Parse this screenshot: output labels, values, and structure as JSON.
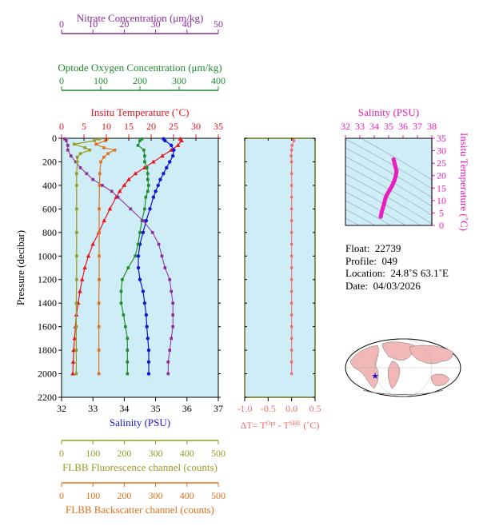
{
  "chart_data": {
    "type": "line",
    "colors": {
      "nitrate": "#8B2A9C",
      "oxygen": "#1E8C2E",
      "temperature": "#E8141C",
      "salinity": "#1414D2",
      "fluorescence": "#9A9A22",
      "backscatter": "#E0701A",
      "panel_bg": "#CFEDF6",
      "dt": "#F06A6A",
      "ts": "#E81EC0"
    },
    "y_axis": {
      "label": "Pressure (decibar)",
      "range": [
        0,
        2200
      ],
      "ticks": [
        "0",
        "200",
        "400",
        "600",
        "800",
        "1000",
        "1200",
        "1400",
        "1600",
        "1800",
        "2000",
        "2200"
      ]
    },
    "axes": {
      "nitrate": {
        "label": "Nitrate Concentration (μm/kg)",
        "range": [
          0,
          50
        ],
        "ticks": [
          "0",
          "10",
          "20",
          "30",
          "40",
          "50"
        ]
      },
      "oxygen": {
        "label": "Optode Oxygen Concentration (μm/kg)",
        "range": [
          0,
          400
        ],
        "ticks": [
          "0",
          "100",
          "200",
          "300",
          "400"
        ]
      },
      "temperature": {
        "label": "Insitu Temperature (˚C)",
        "range": [
          0,
          35
        ],
        "ticks": [
          "0",
          "5",
          "10",
          "15",
          "20",
          "25",
          "30",
          "35"
        ]
      },
      "salinity": {
        "label": "Salinity (PSU)",
        "range": [
          32,
          37
        ],
        "ticks": [
          "32",
          "33",
          "34",
          "35",
          "36",
          "37"
        ]
      },
      "fluorescence": {
        "label": "FLBB Fluorescence channel (counts)",
        "range": [
          0,
          500
        ],
        "ticks": [
          "0",
          "100",
          "200",
          "300",
          "400",
          "500"
        ]
      },
      "backscatter": {
        "label": "FLBB Backscatter channel (counts)",
        "range": [
          0,
          500
        ],
        "ticks": [
          "0",
          "100",
          "200",
          "300",
          "400",
          "500"
        ]
      }
    },
    "series": [
      {
        "name": "temperature",
        "pressure": [
          5,
          20,
          60,
          100,
          150,
          200,
          250,
          300,
          350,
          400,
          450,
          500,
          600,
          700,
          800,
          900,
          1000,
          1100,
          1200,
          1300,
          1400,
          1500,
          1600,
          1700,
          1800,
          1900,
          2000
        ],
        "values": [
          26.5,
          26.8,
          26.0,
          24.5,
          22.5,
          20.5,
          18.5,
          16.5,
          15.0,
          14.0,
          13.0,
          12.2,
          10.8,
          9.5,
          8.3,
          7.0,
          6.0,
          5.2,
          4.6,
          4.1,
          3.7,
          3.3,
          3.1,
          2.9,
          2.7,
          2.6,
          2.5
        ]
      },
      {
        "name": "salinity",
        "pressure": [
          5,
          20,
          60,
          100,
          150,
          200,
          250,
          300,
          350,
          400,
          450,
          500,
          600,
          700,
          800,
          900,
          1000,
          1100,
          1200,
          1300,
          1400,
          1500,
          1600,
          1700,
          1800,
          1900,
          2000
        ],
        "values": [
          35.25,
          35.3,
          35.5,
          35.58,
          35.55,
          35.45,
          35.35,
          35.25,
          35.15,
          35.08,
          35.0,
          34.93,
          34.82,
          34.7,
          34.6,
          34.5,
          34.45,
          34.45,
          34.5,
          34.6,
          34.65,
          34.7,
          34.72,
          34.75,
          34.78,
          34.78,
          34.78
        ]
      },
      {
        "name": "oxygen",
        "pressure": [
          5,
          20,
          60,
          100,
          150,
          200,
          250,
          300,
          350,
          400,
          450,
          500,
          600,
          700,
          800,
          900,
          1000,
          1100,
          1200,
          1300,
          1400,
          1500,
          1600,
          1700,
          1800,
          1900,
          2000
        ],
        "values": [
          205,
          200,
          195,
          210,
          212,
          212,
          218,
          220,
          220,
          222,
          220,
          215,
          212,
          205,
          200,
          195,
          188,
          170,
          155,
          152,
          152,
          158,
          163,
          168,
          168,
          168,
          168
        ]
      },
      {
        "name": "nitrate",
        "pressure": [
          5,
          20,
          60,
          100,
          150,
          200,
          250,
          300,
          350,
          400,
          450,
          500,
          600,
          700,
          800,
          900,
          1000,
          1100,
          1200,
          1300,
          1400,
          1500,
          1600,
          1700,
          1800,
          1900,
          2000
        ],
        "values": [
          1,
          1.5,
          2,
          2,
          3,
          4.5,
          6,
          8,
          10,
          13,
          16,
          18,
          22,
          26,
          29,
          31,
          32,
          33,
          34.5,
          35,
          35.5,
          35.5,
          35.5,
          35,
          34.5,
          34,
          34
        ]
      },
      {
        "name": "fluorescence",
        "pressure": [
          5,
          20,
          50,
          80,
          100,
          130,
          160,
          200,
          300,
          400,
          600,
          800,
          1000,
          1200,
          1400,
          1600,
          1800,
          2000
        ],
        "values": [
          120,
          105,
          40,
          75,
          90,
          60,
          50,
          50,
          48,
          48,
          48,
          48,
          48,
          48,
          47,
          47,
          47,
          47
        ]
      },
      {
        "name": "backscatter",
        "pressure": [
          5,
          20,
          50,
          80,
          100,
          130,
          160,
          200,
          300,
          400,
          600,
          800,
          1000,
          1200,
          1400,
          1600,
          1800,
          2000
        ],
        "values": [
          145,
          140,
          110,
          135,
          170,
          148,
          135,
          125,
          122,
          121,
          120,
          120,
          120,
          120,
          119,
          119,
          119,
          119
        ]
      }
    ],
    "dt_panel": {
      "xlabel": "ΔT= T",
      "xlabel_sup1": "Opt",
      "xlabel_mid": " - T",
      "xlabel_sup2": "SBE",
      "xlabel_unit": " (˚C)",
      "range": [
        -1.0,
        0.5
      ],
      "ticks": [
        "-1.0",
        "-0.5",
        "0.0",
        "0.5"
      ],
      "pressure": [
        5,
        20,
        60,
        100,
        150,
        200,
        300,
        400,
        500,
        600,
        700,
        800,
        900,
        1000,
        1100,
        1200,
        1300,
        1400,
        1500,
        1600,
        1700,
        1800,
        1900,
        2000
      ],
      "values": [
        0.02,
        0.05,
        0.01,
        0.0,
        -0.01,
        0.0,
        0.0,
        0.0,
        0.0,
        0.0,
        0.0,
        0.0,
        0.0,
        0.0,
        0.0,
        0.0,
        0.0,
        0.0,
        0.0,
        0.0,
        0.0,
        0.0,
        0.0,
        0.0
      ]
    },
    "ts_panel": {
      "title": "Salinity (PSU)",
      "x_ticks": [
        "32",
        "33",
        "34",
        "35",
        "36",
        "37",
        "38"
      ],
      "x_range": [
        32,
        38
      ],
      "y_label": "Insitu Temperature (˚C)",
      "y_ticks": [
        "0",
        "5",
        "10",
        "15",
        "20",
        "25",
        "30",
        "35"
      ],
      "y_range": [
        0,
        35
      ],
      "salinity": [
        34.45,
        34.5,
        34.6,
        34.7,
        34.78,
        34.9,
        35.05,
        35.25,
        35.4,
        35.5,
        35.55,
        35.45,
        35.35
      ],
      "temperature": [
        3.5,
        5,
        7,
        9,
        11,
        12.5,
        14,
        16,
        18,
        20,
        22,
        24,
        26.5
      ]
    }
  },
  "info": {
    "float_label": "Float:",
    "float_value": "22739",
    "profile_label": "Profile:",
    "profile_value": "049",
    "location_label": "Location:",
    "location_value": "24.8˚S  63.1˚E",
    "date_label": "Date:",
    "date_value": "04/03/2026"
  },
  "map": {
    "land_color": "#F2B8B8",
    "ocean_color": "#FFFFFF",
    "marker_color": "#1414D2",
    "marker_lon": 63.1,
    "marker_lat": -24.8
  }
}
